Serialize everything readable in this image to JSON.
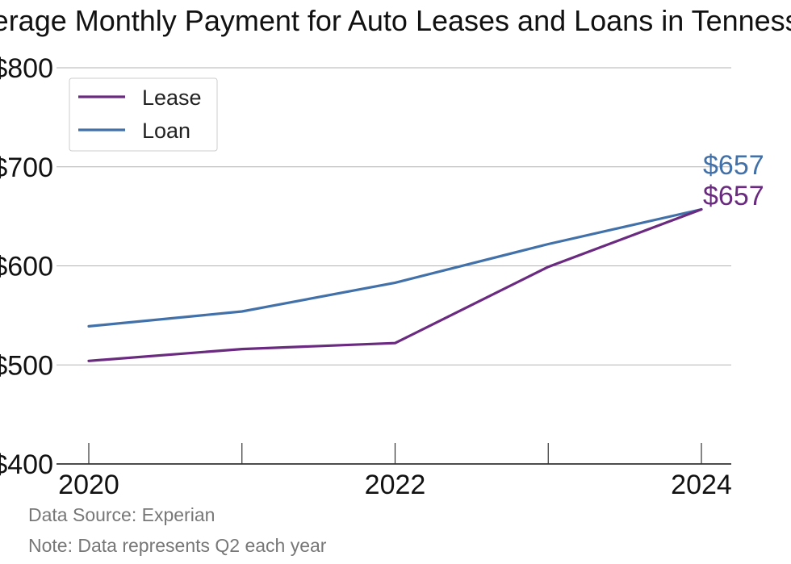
{
  "chart_data": {
    "type": "line",
    "title": "Average Monthly Payment for Auto Leases and Loans in Tennessee",
    "x": [
      2020,
      2021,
      2022,
      2023,
      2024
    ],
    "x_tick_labels": [
      "2020",
      "2022",
      "2024"
    ],
    "ylim": [
      400,
      800
    ],
    "y_ticks": [
      400,
      500,
      600,
      700,
      800
    ],
    "y_tick_labels": [
      "$400",
      "$500",
      "$600",
      "$700",
      "$800"
    ],
    "grid": true,
    "legend_position": "top-left",
    "series": [
      {
        "name": "Lease",
        "color": "#6a2a80",
        "values": [
          504,
          516,
          522,
          599,
          657
        ],
        "end_label": "$657"
      },
      {
        "name": "Loan",
        "color": "#4271aa",
        "values": [
          539,
          554,
          583,
          622,
          657
        ],
        "end_label": "$657"
      }
    ],
    "source": "Data Source: Experian",
    "note": "Note: Data represents Q2 each year"
  }
}
